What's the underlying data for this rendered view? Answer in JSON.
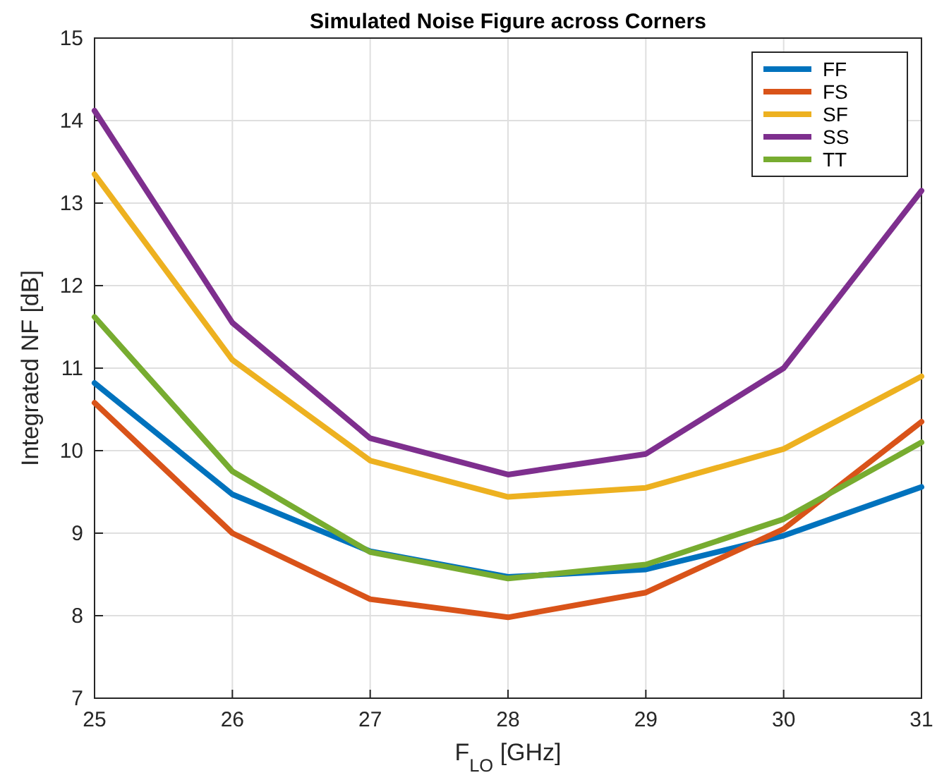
{
  "chart_data": {
    "type": "line",
    "title": "Simulated Noise Figure across Corners",
    "xlabel": "F$_{LO}$ [GHz]",
    "ylabel": "Integrated NF [dB]",
    "x": [
      25,
      26,
      27,
      28,
      29,
      30,
      31
    ],
    "xlim": [
      25,
      31
    ],
    "xticks": [
      25,
      26,
      27,
      28,
      29,
      30,
      31
    ],
    "ylim": [
      7,
      15
    ],
    "yticks": [
      7,
      8,
      9,
      10,
      11,
      12,
      13,
      14,
      15
    ],
    "grid": true,
    "legend": "top right",
    "line_style": "solid",
    "series": [
      {
        "name": "FF",
        "color": "#0072bd",
        "values": [
          10.82,
          9.47,
          8.78,
          8.47,
          8.56,
          8.97,
          9.56
        ]
      },
      {
        "name": "FS",
        "color": "#d95319",
        "values": [
          10.58,
          9.0,
          8.2,
          7.98,
          8.28,
          9.05,
          10.35
        ]
      },
      {
        "name": "SF",
        "color": "#edb120",
        "values": [
          13.35,
          11.1,
          9.88,
          9.44,
          9.55,
          10.02,
          10.9
        ]
      },
      {
        "name": "SS",
        "color": "#7e2f8e",
        "values": [
          14.12,
          11.55,
          10.15,
          9.71,
          9.96,
          11.0,
          13.15
        ]
      },
      {
        "name": "TT",
        "color": "#77ac30",
        "values": [
          11.62,
          9.75,
          8.77,
          8.45,
          8.62,
          9.17,
          10.1
        ]
      }
    ]
  }
}
